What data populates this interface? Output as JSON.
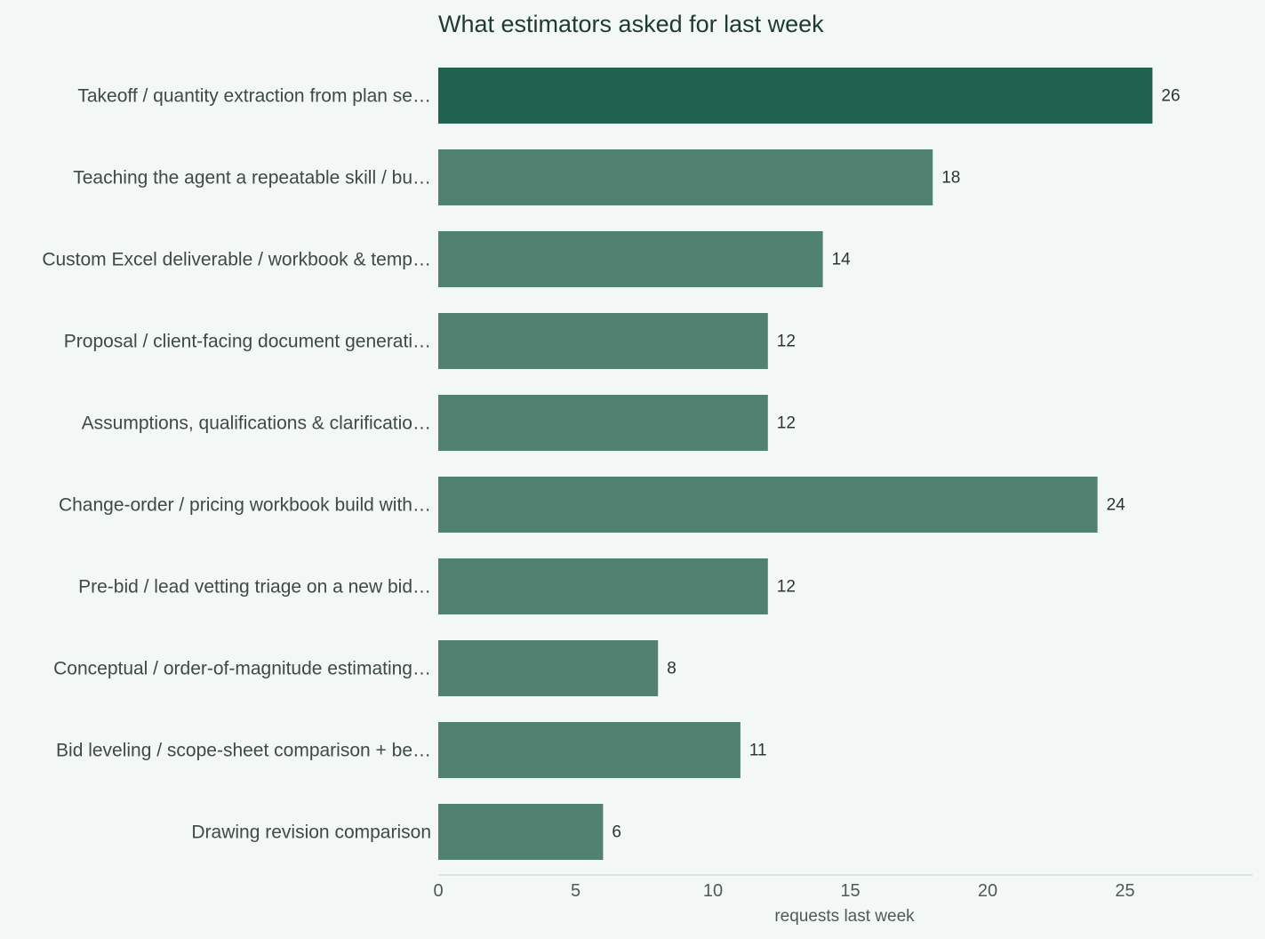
{
  "chart_data": {
    "type": "bar",
    "orientation": "horizontal",
    "title": "What estimators asked for last week",
    "xlabel": "requests last week",
    "ylabel": "",
    "xlim": [
      0,
      29.6
    ],
    "xticks": [
      0,
      5,
      10,
      15,
      20,
      25
    ],
    "grid": false,
    "categories": [
      "Takeoff / quantity extraction from plan se…",
      "Teaching the agent a repeatable skill / bu…",
      "Custom Excel deliverable / workbook & temp…",
      "Proposal / client-facing document generati…",
      "Assumptions, qualifications & clarificatio…",
      "Change-order / pricing workbook build with…",
      "Pre-bid / lead vetting triage on a new bid…",
      "Conceptual / order-of-magnitude estimating…",
      "Bid leveling / scope-sheet comparison + be…",
      "Drawing revision comparison"
    ],
    "values": [
      26,
      18,
      14,
      12,
      12,
      24,
      12,
      8,
      11,
      6
    ],
    "colors": {
      "highlight": "#216150",
      "bar": "#518170",
      "axis": "#d3dcd8",
      "background": "#f3f8f6"
    },
    "highlight_index": 0
  }
}
